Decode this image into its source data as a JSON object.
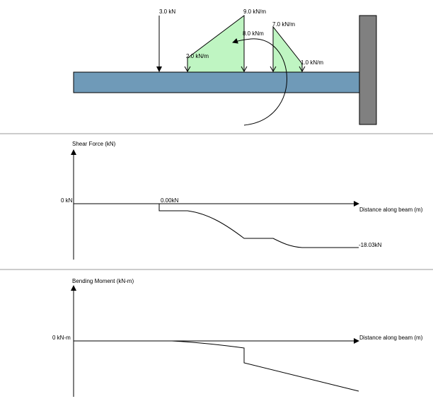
{
  "beam_diagram": {
    "point_load_label": "3.0 kN",
    "moment_label": "8.0 kNm",
    "dist_load_1": {
      "start_label": "2.0 kN/m",
      "end_label": "9.0 kN/m"
    },
    "dist_load_2": {
      "start_label": "7.0 kN/m",
      "end_label": "1.0 kN/m"
    },
    "colors": {
      "beam": "#6f9ab8",
      "wall": "#808080",
      "load_fill": "#bff5c2"
    }
  },
  "shear_plot": {
    "title": "Shear Force (kN)",
    "zero_label": "0 kN",
    "x_axis_label": "Distance along beam (m)",
    "start_value_label": "0.00kN",
    "end_value_label": "-18.03kN"
  },
  "moment_plot": {
    "title": "Bending Moment (kN-m)",
    "zero_label": "0 kN-m",
    "x_axis_label": "Distance along beam (m)"
  }
}
